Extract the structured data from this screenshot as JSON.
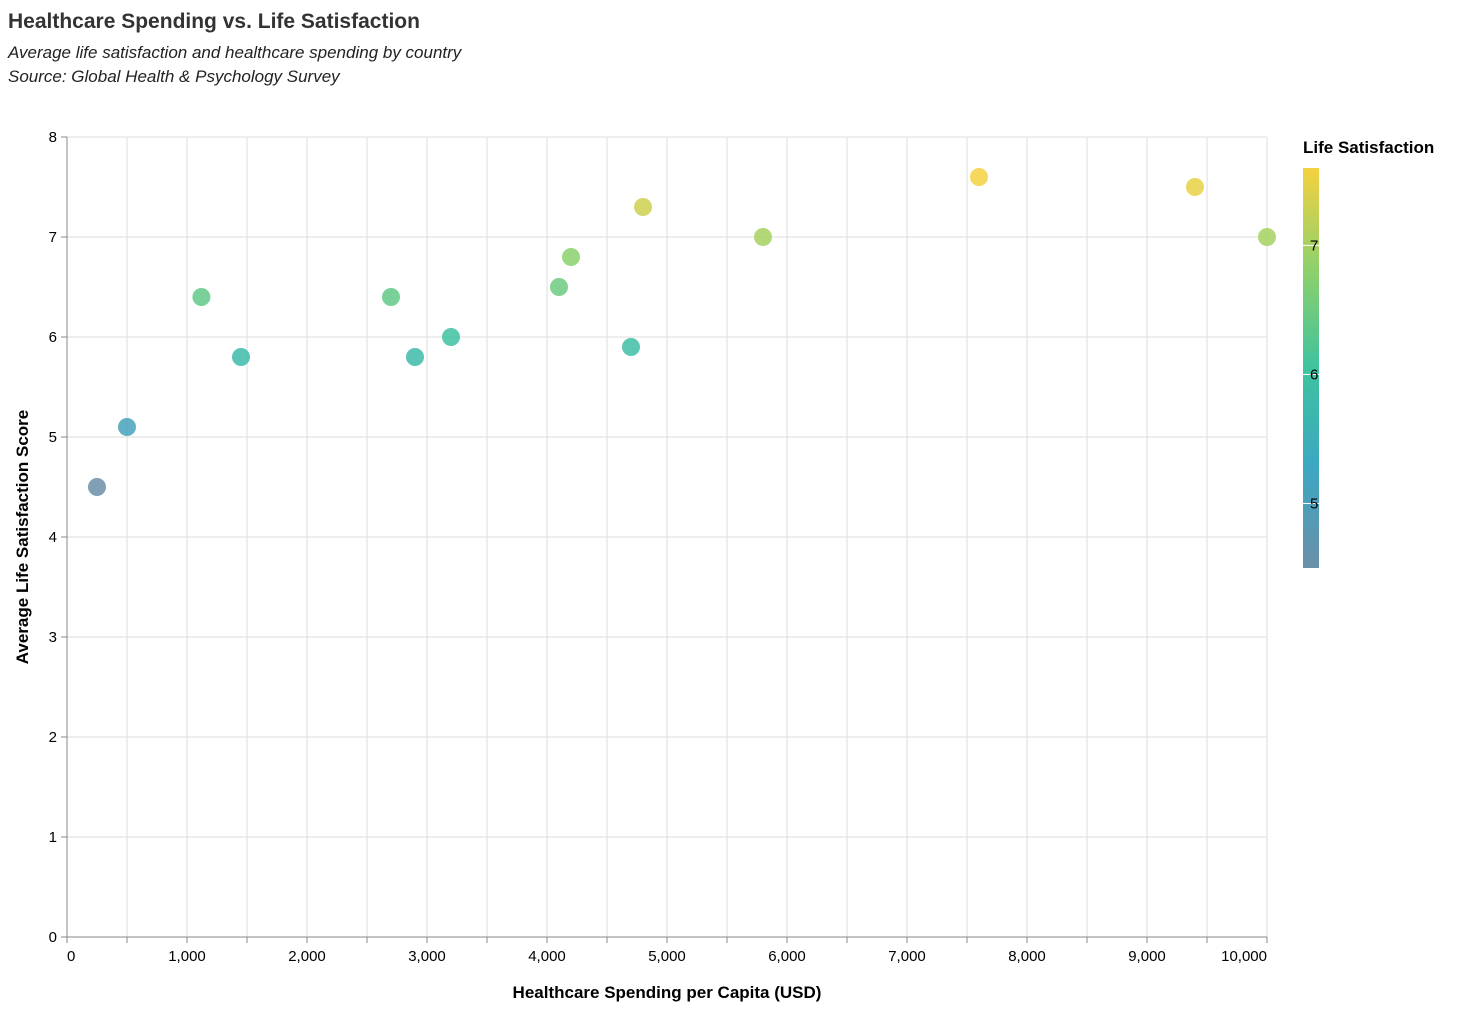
{
  "chart_data": {
    "type": "scatter",
    "title": "Healthcare Spending vs. Life Satisfaction",
    "subtitle": [
      "Average life satisfaction and healthcare spending by country",
      "Source: Global Health & Psychology Survey"
    ],
    "xlabel": "Healthcare Spending per Capita (USD)",
    "ylabel": "Average Life Satisfaction Score",
    "xlim": [
      0,
      10000
    ],
    "ylim": [
      0,
      8
    ],
    "x_ticks": [
      0,
      1000,
      2000,
      3000,
      4000,
      5000,
      6000,
      7000,
      8000,
      9000,
      10000
    ],
    "x_tick_labels": [
      "0",
      "1,000",
      "2,000",
      "3,000",
      "4,000",
      "5,000",
      "6,000",
      "7,000",
      "8,000",
      "9,000",
      "10,000"
    ],
    "y_ticks": [
      0,
      1,
      2,
      3,
      4,
      5,
      6,
      7,
      8
    ],
    "y_tick_labels": [
      "0",
      "1",
      "2",
      "3",
      "4",
      "5",
      "6",
      "7",
      "8"
    ],
    "grid": true,
    "points": [
      {
        "x": 250,
        "y": 4.5
      },
      {
        "x": 500,
        "y": 5.1
      },
      {
        "x": 1120,
        "y": 6.4
      },
      {
        "x": 1450,
        "y": 5.8
      },
      {
        "x": 2700,
        "y": 6.4
      },
      {
        "x": 2900,
        "y": 5.8
      },
      {
        "x": 3200,
        "y": 6.0
      },
      {
        "x": 4100,
        "y": 6.5
      },
      {
        "x": 4200,
        "y": 6.8
      },
      {
        "x": 4700,
        "y": 5.9
      },
      {
        "x": 4800,
        "y": 7.3
      },
      {
        "x": 5800,
        "y": 7.0
      },
      {
        "x": 7600,
        "y": 7.6
      },
      {
        "x": 9400,
        "y": 7.5
      },
      {
        "x": 10000,
        "y": 7.0
      }
    ],
    "color_encoding": {
      "field": "y",
      "title": "Life Satisfaction",
      "domain": [
        4.5,
        7.6
      ],
      "ticks": [
        5,
        6,
        7
      ],
      "tick_labels": [
        "5",
        "6",
        "7"
      ],
      "scheme_colors": [
        "#6b8fa8",
        "#3ca7c2",
        "#3ec39e",
        "#8ed16a",
        "#f5d13f"
      ]
    },
    "legend_placement": "right"
  }
}
